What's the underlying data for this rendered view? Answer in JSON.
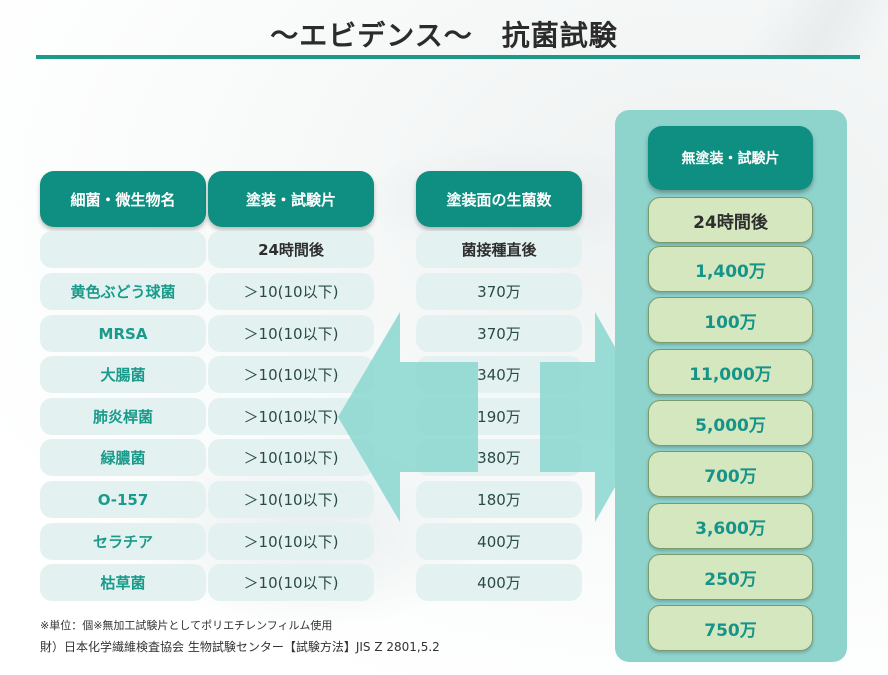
{
  "title": "〜エビデンス〜　抗菌試験",
  "headers": {
    "bacteria": "細菌・微生物名",
    "coated": "塗装・試験片",
    "count": "塗装面の生菌数",
    "uncoated": "無塗装・試験片"
  },
  "subheaders": {
    "bacteria": "",
    "coated": "24時間後",
    "count": "菌接種直後",
    "uncoated": "24時間後"
  },
  "rows": [
    {
      "name": "黄色ぶどう球菌",
      "coated": "＞10(10以下)",
      "count": "370万",
      "uncoated": "1,400万"
    },
    {
      "name": "MRSA",
      "coated": "＞10(10以下)",
      "count": "370万",
      "uncoated": "100万"
    },
    {
      "name": "大腸菌",
      "coated": "＞10(10以下)",
      "count": "340万",
      "uncoated": "11,000万"
    },
    {
      "name": "肺炎桿菌",
      "coated": "＞10(10以下)",
      "count": "190万",
      "uncoated": "5,000万"
    },
    {
      "name": "緑膿菌",
      "coated": "＞10(10以下)",
      "count": "380万",
      "uncoated": "700万"
    },
    {
      "name": "O-157",
      "coated": "＞10(10以下)",
      "count": "180万",
      "uncoated": "3,600万"
    },
    {
      "name": "セラチア",
      "coated": "＞10(10以下)",
      "count": "400万",
      "uncoated": "250万"
    },
    {
      "name": "枯草菌",
      "coated": "＞10(10以下)",
      "count": "400万",
      "uncoated": "750万"
    }
  ],
  "notes": {
    "unit": "※単位：個※無加工試験片としてポリエチレンフィルム使用",
    "source": "財）日本化学繊維検査協会 生物試験センター【試験方法】JIS Z 2801,5.2"
  },
  "colors": {
    "header": "#0e8f81",
    "cell_bg": "#e3f2f1",
    "accent_text": "#1a9a8b",
    "panel": "#8fd3cd",
    "panel_cell": "#d5e7bf",
    "arrow": "#8fd8d2",
    "title_line": "#1b9a8a"
  }
}
